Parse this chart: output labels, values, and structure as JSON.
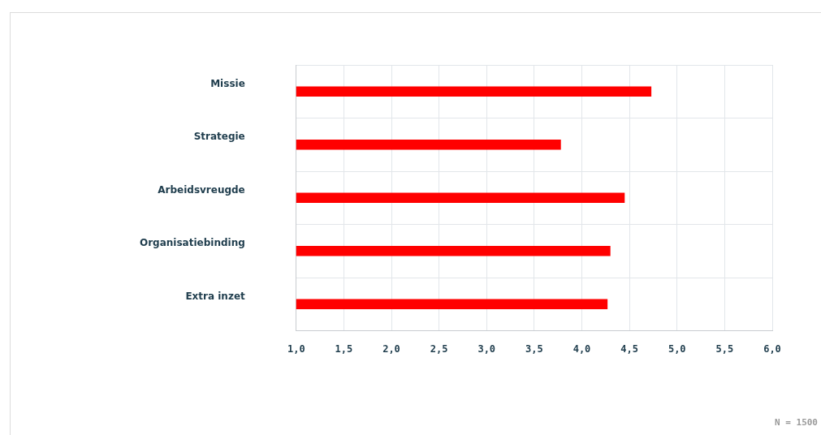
{
  "chart_data": {
    "type": "bar",
    "orientation": "horizontal",
    "categories": [
      "Missie",
      "Strategie",
      "Arbeidsvreugde",
      "Organisatiebinding",
      "Extra inzet"
    ],
    "values": [
      4.73,
      3.78,
      4.45,
      4.3,
      4.27
    ],
    "color": "#ff0000",
    "xlim": [
      1,
      6
    ],
    "xticks": [
      {
        "value": 1,
        "label": "1,0"
      },
      {
        "value": 1.5,
        "label": "1,5"
      },
      {
        "value": 2,
        "label": "2,0"
      },
      {
        "value": 2.5,
        "label": "2,5"
      },
      {
        "value": 3,
        "label": "3,0"
      },
      {
        "value": 3.5,
        "label": "3,5"
      },
      {
        "value": 4,
        "label": "4,0"
      },
      {
        "value": 4.5,
        "label": "4,5"
      },
      {
        "value": 5,
        "label": "5,0"
      },
      {
        "value": 5.5,
        "label": "5,5"
      },
      {
        "value": 6,
        "label": "6,0"
      }
    ],
    "grid": true,
    "annotations": [
      "N = 1500"
    ]
  }
}
